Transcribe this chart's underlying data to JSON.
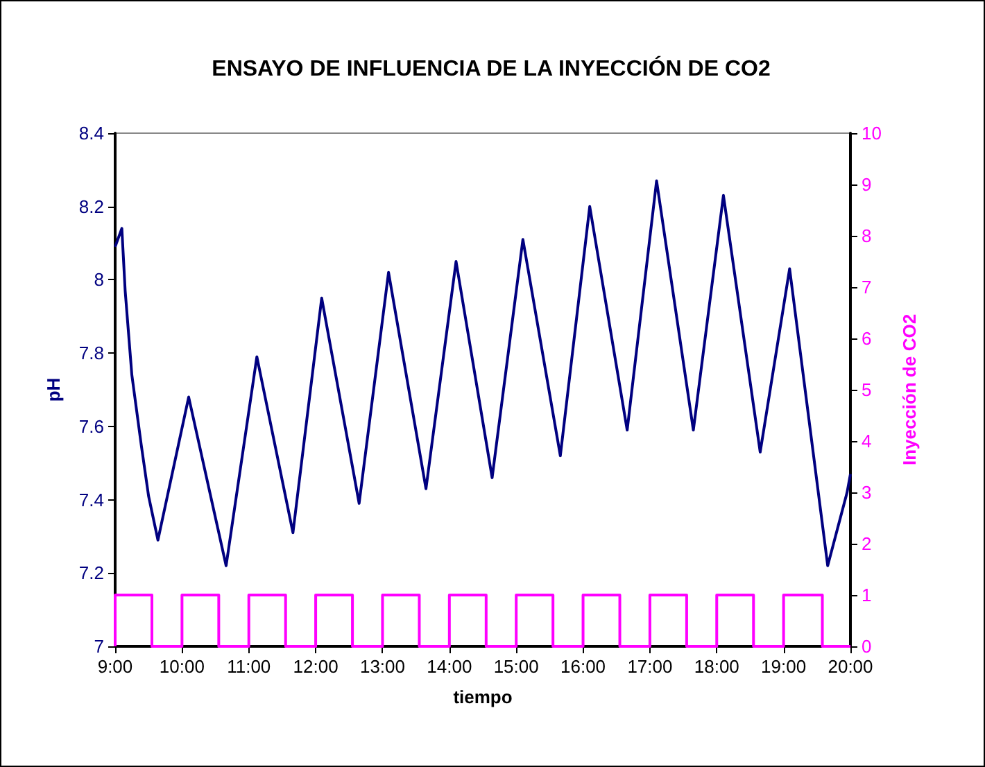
{
  "chart_data": {
    "type": "line",
    "title": "ENSAYO DE INFLUENCIA DE LA INYECCIÓN DE CO2",
    "xlabel": "tiempo",
    "ylabel": "pH",
    "y2label": "Inyección de CO2",
    "xlim": [
      9,
      20
    ],
    "xticks": [
      {
        "value": 9,
        "label": "9:00"
      },
      {
        "value": 10,
        "label": "10:00"
      },
      {
        "value": 11,
        "label": "11:00"
      },
      {
        "value": 12,
        "label": "12:00"
      },
      {
        "value": 13,
        "label": "13:00"
      },
      {
        "value": 14,
        "label": "14:00"
      },
      {
        "value": 15,
        "label": "15:00"
      },
      {
        "value": 16,
        "label": "16:00"
      },
      {
        "value": 17,
        "label": "17:00"
      },
      {
        "value": 18,
        "label": "18:00"
      },
      {
        "value": 19,
        "label": "19:00"
      },
      {
        "value": 20,
        "label": "20:00"
      }
    ],
    "ylim": [
      7,
      8.4
    ],
    "yticks": [
      7,
      7.2,
      7.4,
      7.6,
      7.8,
      8,
      8.2,
      8.4
    ],
    "y2lim": [
      0,
      10
    ],
    "y2ticks": [
      0,
      1,
      2,
      3,
      4,
      5,
      6,
      7,
      8,
      9,
      10
    ],
    "grid": false,
    "marker": "none",
    "line_style": "solid",
    "series": [
      {
        "color": "#000080",
        "x": [
          9.0,
          9.1,
          9.15,
          9.25,
          9.39,
          9.5,
          9.64,
          10.1,
          10.66,
          11.12,
          11.66,
          12.09,
          12.65,
          13.09,
          13.65,
          14.1,
          14.64,
          15.1,
          15.66,
          16.1,
          16.66,
          17.1,
          17.65,
          18.1,
          18.65,
          19.09,
          19.66,
          19.95,
          20.0
        ],
        "values": [
          8.09,
          8.14,
          7.97,
          7.74,
          7.55,
          7.41,
          7.29,
          7.68,
          7.22,
          7.79,
          7.31,
          7.95,
          7.39,
          8.02,
          7.43,
          8.05,
          7.46,
          8.11,
          7.52,
          8.2,
          7.59,
          8.27,
          7.59,
          8.23,
          7.53,
          8.03,
          7.22,
          7.42,
          7.47
        ]
      },
      {
        "type": "step",
        "axis": "y2",
        "color": "#ff00ff",
        "x": [
          9,
          9,
          9.55,
          10,
          10.55,
          11,
          11.55,
          12,
          12.55,
          13,
          13.55,
          14,
          14.55,
          15,
          15.55,
          16,
          16.55,
          17,
          17.55,
          18,
          18.55,
          19,
          19.58,
          20
        ],
        "values": [
          0,
          1,
          0,
          1,
          0,
          1,
          0,
          1,
          0,
          1,
          0,
          1,
          0,
          1,
          0,
          1,
          0,
          1,
          0,
          1,
          0,
          1,
          0,
          0
        ]
      }
    ]
  }
}
